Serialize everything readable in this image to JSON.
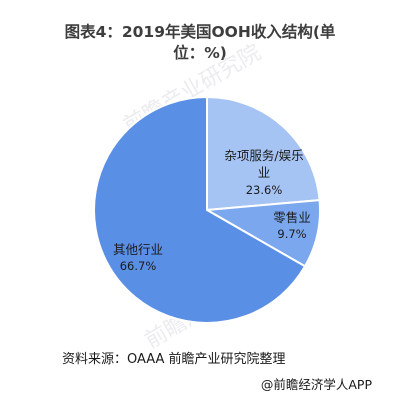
{
  "title": "图表4：2019年美国OOH收入结构(单位：%)",
  "source": "资料来源：OAAA 前瞻产业研究院整理",
  "footer": "@前瞻经济学人APP",
  "colors": {
    "dark_blue": "#5a8fe6",
    "light_blue": "#a6c4f3",
    "mid_blue": "#7aa7ee",
    "edge": "#ffffff"
  },
  "chart_data": {
    "type": "pie",
    "title": "图表4：2019年美国OOH收入结构(单位：%)",
    "unit": "%",
    "slices": [
      {
        "label": "杂项服务/娱乐业",
        "value": 23.6,
        "value_text": "23.6%",
        "color": "#a6c4f3"
      },
      {
        "label": "零售业",
        "value": 9.7,
        "value_text": "9.7%",
        "color": "#7aa7ee"
      },
      {
        "label": "其他行业",
        "value": 66.7,
        "value_text": "66.7%",
        "color": "#5a8fe6"
      }
    ]
  }
}
